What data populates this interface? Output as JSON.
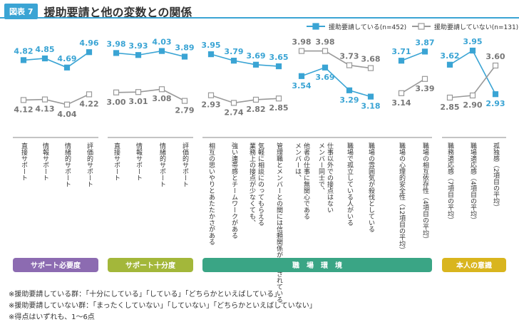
{
  "header": {
    "badge": "図表 7",
    "title": "援助要請と他の変数との関係"
  },
  "legend": [
    {
      "label": "援助要請している(n=452)",
      "color": "#3aa4d4",
      "marker": "square-filled"
    },
    {
      "label": "援助要請していない(n=131)",
      "color": "#999999",
      "marker": "square-open"
    }
  ],
  "colors": {
    "helping": "#3aa4d4",
    "not_helping": "#999999"
  },
  "chart_data": {
    "type": "line",
    "series_names": [
      "援助要請している(n=452)",
      "援助要請していない(n=131)"
    ],
    "panels": [
      {
        "group": "サポート必要度",
        "categories": [
          "直接サポート",
          "情報サポート",
          "情緒的サポート",
          "評価的サポート"
        ],
        "series": [
          {
            "values": [
              4.82,
              4.85,
              4.69,
              4.96
            ]
          },
          {
            "values": [
              4.12,
              4.13,
              4.04,
              4.22
            ]
          }
        ],
        "ylim": [
          3.9,
          5.1
        ]
      },
      {
        "group": "サポート十分度",
        "categories": [
          "直接サポート",
          "情報サポート",
          "情緒的サポート",
          "評価的サポート"
        ],
        "series": [
          {
            "values": [
              3.98,
              3.93,
              4.03,
              3.89
            ]
          },
          {
            "values": [
              3.0,
              3.01,
              3.08,
              2.79
            ]
          }
        ],
        "ylim": [
          2.5,
          4.2
        ]
      },
      {
        "group": "職場環境",
        "categories": [
          "相互の思いやりとあたたかさがある",
          "強い連帯感とチームワークがある",
          "業務上の接点が少なくても、気軽に相談にのってもらえる",
          "管理職とメンバーとの間には信頼関係が構築されている"
        ],
        "series": [
          {
            "values": [
              3.95,
              3.79,
              3.69,
              3.65
            ]
          },
          {
            "values": [
              2.93,
              2.74,
              2.82,
              2.85
            ]
          }
        ],
        "ylim": [
          2.5,
          4.2
        ]
      },
      {
        "group": "職場環境",
        "categories": [
          "メンバーは、他者の仕事に無関心である",
          "メンバー同士で、仕事以外での接点はない",
          "職場で孤立している人がいる",
          "職場の雰囲気が殺伐としている"
        ],
        "series": [
          {
            "values": [
              3.54,
              3.69,
              3.29,
              3.18
            ]
          },
          {
            "values": [
              3.98,
              3.98,
              3.73,
              3.68
            ]
          }
        ],
        "ylim": [
          2.9,
          4.1
        ]
      },
      {
        "group": "職場環境",
        "categories": [
          "職場の心理的安全性（12項目の平均）",
          "職場の相互依存性（4項目の平均）"
        ],
        "series": [
          {
            "values": [
              3.71,
              3.87
            ]
          },
          {
            "values": [
              3.14,
              3.39
            ]
          }
        ],
        "ylim": [
          2.8,
          4.0
        ]
      },
      {
        "group": "本人の意識",
        "categories": [
          "職務適応感（7項目の平均）",
          "職場適応感（4項目の平均）",
          "孤独感（2項目の平均）"
        ],
        "series": [
          {
            "values": [
              3.62,
              3.95,
              2.93
            ]
          },
          {
            "values": [
              2.85,
              2.9,
              3.6
            ]
          }
        ],
        "ylim": [
          2.5,
          4.1
        ]
      }
    ],
    "groups": [
      {
        "label": "サポート必要度",
        "color": "#8c6bb1"
      },
      {
        "label": "サポート十分度",
        "color": "#a3b73a"
      },
      {
        "label": "職　場　環　境",
        "color": "#3aa585"
      },
      {
        "label": "本人の意識",
        "color": "#d9b51e"
      }
    ]
  },
  "notes": [
    "※援助要請している群：「十分にしている」「している」「どちらかといえばしている」",
    "※援助要請していない群：「まったくしていない」「していない」「どちらかといえばしていない」",
    "※得点はいずれも、1〜6点"
  ]
}
